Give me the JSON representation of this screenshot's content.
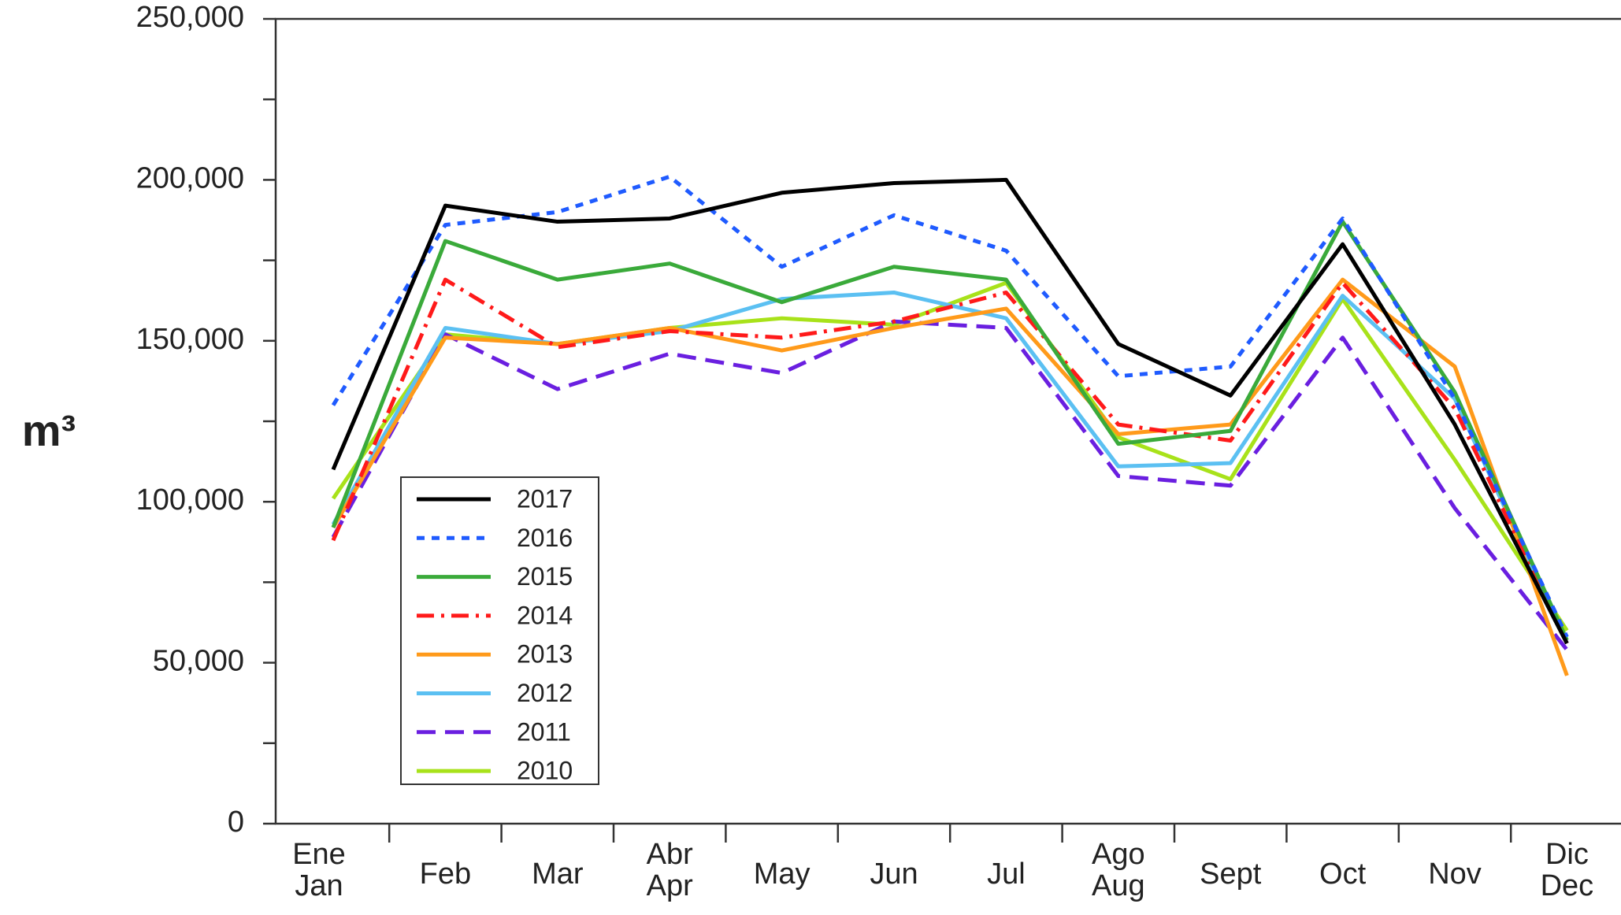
{
  "chart_data": {
    "type": "line",
    "y_label": "m³",
    "categories": [
      [
        "Ene",
        "Jan"
      ],
      [
        "Feb"
      ],
      [
        "Mar"
      ],
      [
        "Abr",
        "Apr"
      ],
      [
        "May"
      ],
      [
        "Jun"
      ],
      [
        "Jul"
      ],
      [
        "Ago",
        "Aug"
      ],
      [
        "Sept"
      ],
      [
        "Oct"
      ],
      [
        "Nov"
      ],
      [
        "Dic",
        "Dec"
      ]
    ],
    "ylim": [
      0,
      250000
    ],
    "yticks": [
      {
        "value": 0,
        "label": "0"
      },
      {
        "value": 50000,
        "label": "50,000"
      },
      {
        "value": 100000,
        "label": "100,000"
      },
      {
        "value": 150000,
        "label": "150,000"
      },
      {
        "value": 200000,
        "label": "200,000"
      },
      {
        "value": 250000,
        "label": "250,000"
      }
    ],
    "yminorticks": [
      25000,
      75000,
      125000,
      175000,
      225000
    ],
    "legend": "lower-left",
    "series": [
      {
        "name": "2017",
        "color": "#000000",
        "linestyle": "solid",
        "values": [
          110000,
          192000,
          187000,
          188000,
          196000,
          199000,
          200000,
          149000,
          133000,
          180000,
          124000,
          56000
        ]
      },
      {
        "name": "2016",
        "color": "#1f5bff",
        "linestyle": "dashed",
        "values": [
          130000,
          186000,
          190000,
          201000,
          173000,
          189000,
          178000,
          139000,
          142000,
          188000,
          132000,
          58000
        ]
      },
      {
        "name": "2015",
        "color": "#3aaa3a",
        "linestyle": "solid",
        "values": [
          92000,
          181000,
          169000,
          174000,
          162000,
          173000,
          169000,
          118000,
          122000,
          187000,
          134000,
          57000
        ]
      },
      {
        "name": "2014",
        "color": "#ff1a1a",
        "linestyle": "dashdot",
        "values": [
          88000,
          169000,
          148000,
          153000,
          151000,
          156000,
          165000,
          124000,
          119000,
          168000,
          129000,
          56000
        ]
      },
      {
        "name": "2013",
        "color": "#ff9a1a",
        "linestyle": "solid",
        "values": [
          92000,
          151000,
          149000,
          154000,
          147000,
          154000,
          160000,
          121000,
          124000,
          169000,
          142000,
          46000
        ]
      },
      {
        "name": "2012",
        "color": "#5bc0f2",
        "linestyle": "solid",
        "values": [
          93000,
          154000,
          149000,
          153000,
          163000,
          165000,
          157000,
          111000,
          112000,
          164000,
          132000,
          56000
        ]
      },
      {
        "name": "2011",
        "color": "#6a1fe0",
        "linestyle": "longdash",
        "values": [
          89000,
          152000,
          135000,
          146000,
          140000,
          156000,
          154000,
          108000,
          105000,
          151000,
          98000,
          54000
        ]
      },
      {
        "name": "2010",
        "color": "#a8e21a",
        "linestyle": "solid",
        "values": [
          101000,
          152000,
          149000,
          154000,
          157000,
          155000,
          168000,
          120000,
          107000,
          163000,
          113000,
          60000
        ]
      }
    ]
  }
}
